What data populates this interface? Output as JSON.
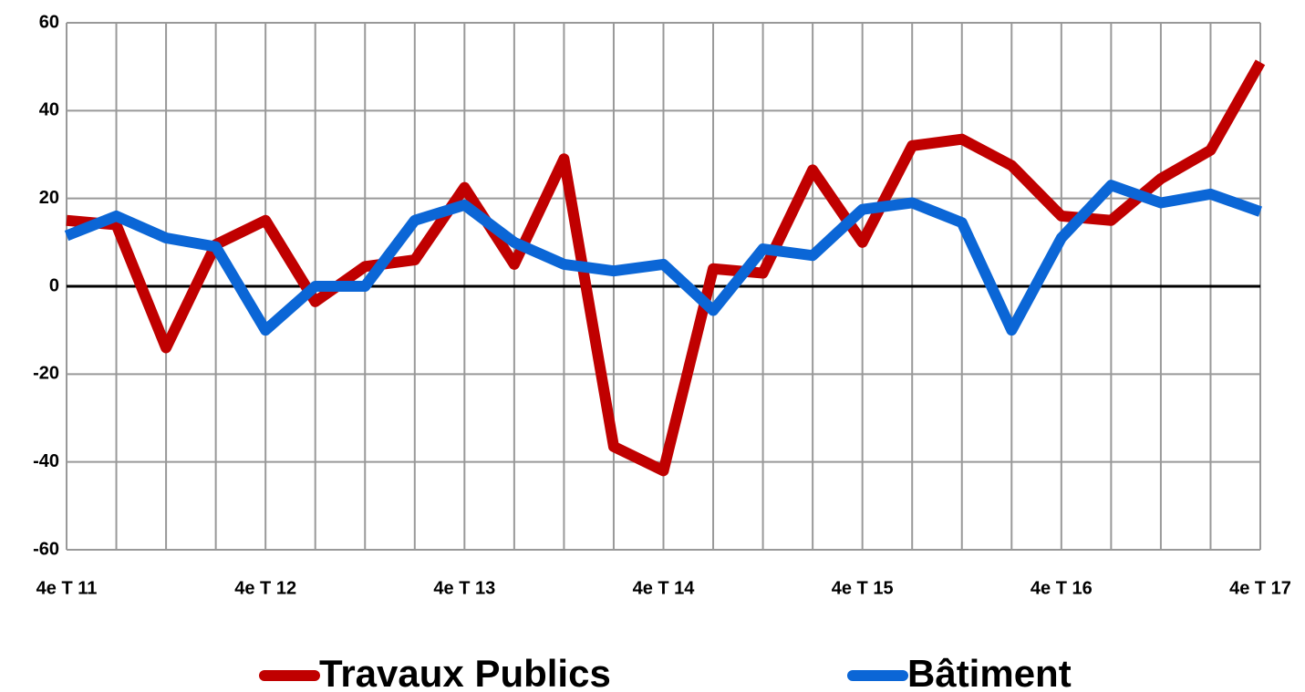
{
  "chart_data": {
    "type": "line",
    "categories": [
      "4e T 11",
      null,
      null,
      null,
      "4e T 12",
      null,
      null,
      null,
      "4e T 13",
      null,
      null,
      null,
      "4e T 14",
      null,
      null,
      null,
      "4e T 15",
      null,
      null,
      null,
      "4e T 16",
      null,
      null,
      null,
      "4e T 17"
    ],
    "series": [
      {
        "name": "Travaux Publics",
        "color": "#c00000",
        "values": [
          15,
          14,
          -14,
          9.5,
          15,
          -3.5,
          4.5,
          6,
          22.5,
          5,
          29,
          -36.5,
          -42,
          4,
          3,
          26.5,
          10,
          32,
          33.5,
          27.5,
          16,
          15,
          24.5,
          31,
          51
        ]
      },
      {
        "name": "Bâtiment",
        "color": "#0b66d6",
        "values": [
          11.5,
          16,
          11,
          9,
          -10,
          0,
          0,
          15,
          18.5,
          10,
          5,
          3.5,
          5,
          -5.5,
          8.5,
          7,
          17.5,
          19,
          14.5,
          -10,
          11,
          23,
          19,
          21,
          17
        ]
      }
    ],
    "ylim": [
      -60,
      60
    ],
    "yticks": [
      -60,
      -40,
      -20,
      0,
      20,
      40,
      60
    ],
    "grid": true,
    "legend": "bottom"
  }
}
